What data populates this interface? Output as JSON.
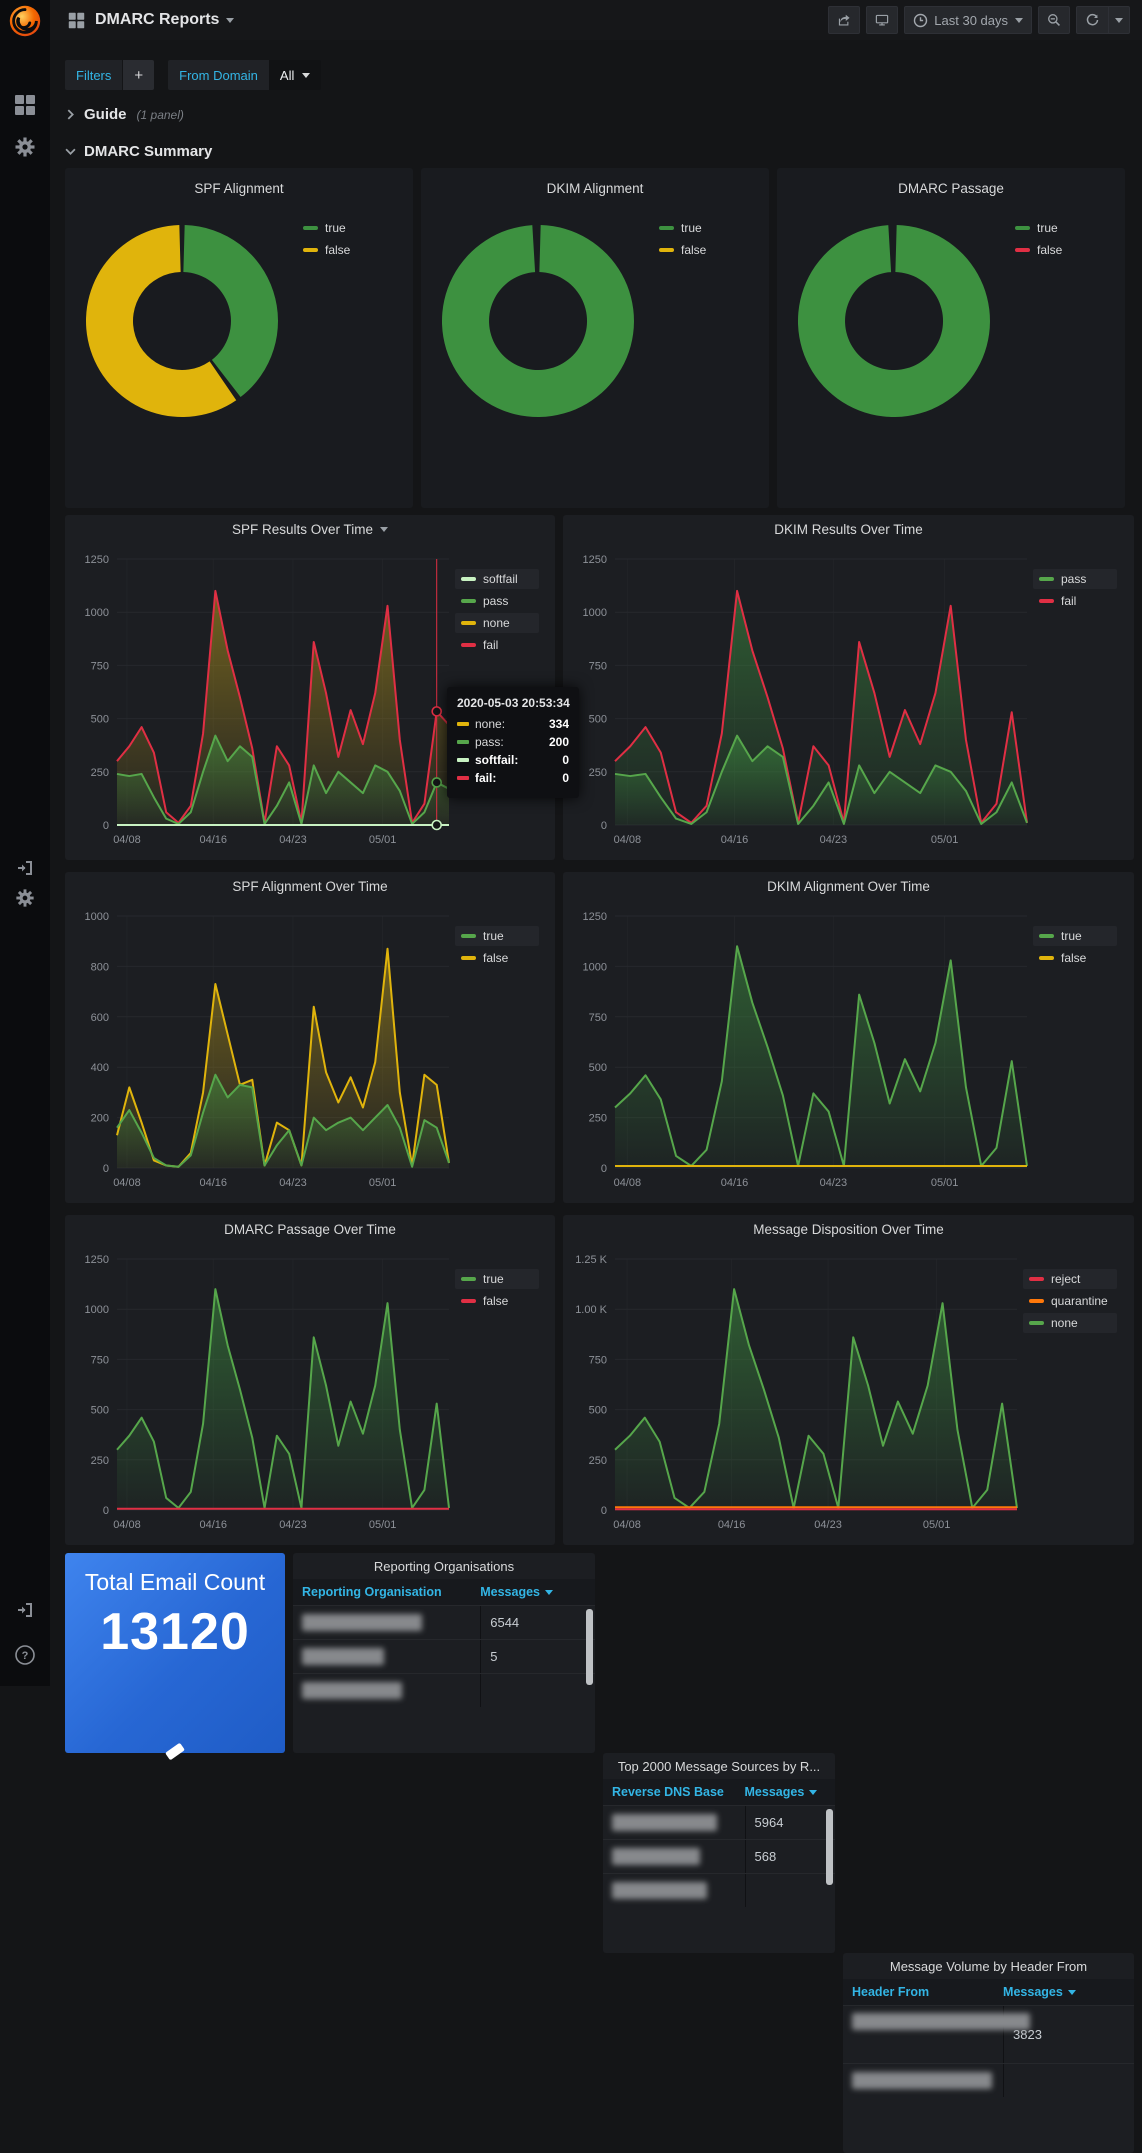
{
  "header": {
    "title": "DMARC Reports",
    "time_range": "Last 30 days"
  },
  "filters": {
    "label": "Filters",
    "add": "+",
    "from_domain_label": "From Domain",
    "from_domain_value": "All"
  },
  "guide": {
    "title": "Guide",
    "panel_count": "(1 panel)"
  },
  "summary": {
    "title": "DMARC Summary"
  },
  "colors": {
    "accent": "#33b5e5",
    "green": "#56a64b",
    "donut_green": "#3d9140",
    "yellow": "#e0b40c",
    "red": "#e02f44",
    "orange": "#ff780a",
    "lightgreen": "#c8f2c2",
    "panel_blue_from": "#3f84ee",
    "panel_blue_to": "#1f5cc6"
  },
  "spf_tooltip": {
    "time": "2020-05-03 20:53:34",
    "rows": [
      {
        "label": "none:",
        "value": "334",
        "color": "#e0b40c",
        "bold": false
      },
      {
        "label": "pass:",
        "value": "200",
        "color": "#56a64b",
        "bold": false
      },
      {
        "label": "softfail:",
        "value": "0",
        "color": "#c8f2c2",
        "bold": true
      },
      {
        "label": "fail:",
        "value": "0",
        "color": "#e02f44",
        "bold": true
      }
    ]
  },
  "chart_data": [
    {
      "id": "spf_alignment_donut",
      "type": "pie",
      "title": "SPF Alignment",
      "slices": [
        {
          "label": "true",
          "frac": 0.4,
          "color": "#3d9140"
        },
        {
          "label": "false",
          "frac": 0.6,
          "color": "#e0b40c"
        }
      ],
      "legend": [
        {
          "label": "true",
          "color": "#3d9140"
        },
        {
          "label": "false",
          "color": "#e0b40c"
        }
      ]
    },
    {
      "id": "dkim_alignment_donut",
      "type": "pie",
      "title": "DKIM Alignment",
      "slices": [
        {
          "label": "true",
          "frac": 0.995,
          "color": "#3d9140"
        },
        {
          "label": "false",
          "frac": 0.005,
          "color": "#e0b40c"
        }
      ],
      "legend": [
        {
          "label": "true",
          "color": "#3d9140"
        },
        {
          "label": "false",
          "color": "#e0b40c"
        }
      ]
    },
    {
      "id": "dmarc_passage_donut",
      "type": "pie",
      "title": "DMARC Passage",
      "slices": [
        {
          "label": "true",
          "frac": 0.995,
          "color": "#3d9140"
        },
        {
          "label": "false",
          "frac": 0.005,
          "color": "#e02f44"
        }
      ],
      "legend": [
        {
          "label": "true",
          "color": "#3d9140"
        },
        {
          "label": "false",
          "color": "#e02f44"
        }
      ]
    },
    {
      "id": "spf_results",
      "type": "area",
      "title": "SPF Results Over Time",
      "menu_caret": true,
      "ylim": [
        0,
        1250
      ],
      "yticks": [
        "1250",
        "1000",
        "750",
        "500",
        "250",
        "0"
      ],
      "xticks": [
        {
          "f": 0.03,
          "l": "04/08"
        },
        {
          "f": 0.29,
          "l": "04/16"
        },
        {
          "f": 0.53,
          "l": "04/23"
        },
        {
          "f": 0.8,
          "l": "05/01"
        }
      ],
      "legend": [
        {
          "label": "softfail",
          "color": "#c8f2c2"
        },
        {
          "label": "pass",
          "color": "#56a64b"
        },
        {
          "label": "none",
          "color": "#e0b40c"
        },
        {
          "label": "fail",
          "color": "#e02f44"
        }
      ],
      "series": [
        {
          "name": "fail",
          "color": "#e02f44",
          "fill": "#b99a1d",
          "values": [
            300,
            370,
            460,
            340,
            60,
            10,
            90,
            430,
            1100,
            820,
            600,
            360,
            10,
            370,
            280,
            10,
            860,
            620,
            320,
            540,
            380,
            620,
            1030,
            400,
            10,
            100,
            534,
            470
          ]
        },
        {
          "name": "pass",
          "color": "#56a64b",
          "fill": "#3f9141",
          "values": [
            240,
            230,
            240,
            130,
            30,
            5,
            60,
            250,
            420,
            300,
            370,
            320,
            5,
            90,
            200,
            5,
            280,
            150,
            250,
            200,
            150,
            280,
            250,
            160,
            5,
            60,
            200,
            170
          ]
        },
        {
          "name": "softfail",
          "color": "#c8f2c2",
          "flat": 0
        }
      ],
      "cursor": {
        "i": 26,
        "markers": [
          {
            "v": 534,
            "color": "#e02f44"
          },
          {
            "v": 200,
            "color": "#56a64b"
          },
          {
            "v": 0,
            "color": "#c8f2c2"
          }
        ]
      }
    },
    {
      "id": "dkim_results",
      "type": "area",
      "title": "DKIM Results Over Time",
      "ylim": [
        0,
        1250
      ],
      "yticks": [
        "1250",
        "1000",
        "750",
        "500",
        "250",
        "0"
      ],
      "xticks": [
        {
          "f": 0.03,
          "l": "04/08"
        },
        {
          "f": 0.29,
          "l": "04/16"
        },
        {
          "f": 0.53,
          "l": "04/23"
        },
        {
          "f": 0.8,
          "l": "05/01"
        }
      ],
      "legend": [
        {
          "label": "pass",
          "color": "#56a64b"
        },
        {
          "label": "fail",
          "color": "#e02f44"
        }
      ],
      "series": [
        {
          "name": "fail",
          "color": "#e02f44",
          "fill": "#3f9141",
          "values": [
            300,
            370,
            460,
            340,
            60,
            10,
            90,
            430,
            1100,
            820,
            600,
            360,
            10,
            370,
            280,
            10,
            860,
            620,
            320,
            540,
            380,
            620,
            1030,
            400,
            10,
            100,
            530,
            10
          ]
        },
        {
          "name": "pass",
          "color": "#56a64b",
          "fill": "#3f9141",
          "values": [
            240,
            230,
            240,
            130,
            30,
            5,
            60,
            250,
            420,
            300,
            370,
            320,
            5,
            90,
            200,
            5,
            280,
            150,
            250,
            200,
            150,
            280,
            250,
            160,
            5,
            60,
            200,
            10
          ]
        }
      ]
    },
    {
      "id": "spf_alignment_time",
      "type": "area",
      "title": "SPF Alignment Over Time",
      "ylim": [
        0,
        1000
      ],
      "yticks": [
        "1000",
        "800",
        "600",
        "400",
        "200",
        "0"
      ],
      "xticks": [
        {
          "f": 0.03,
          "l": "04/08"
        },
        {
          "f": 0.29,
          "l": "04/16"
        },
        {
          "f": 0.53,
          "l": "04/23"
        },
        {
          "f": 0.8,
          "l": "05/01"
        }
      ],
      "legend": [
        {
          "label": "true",
          "color": "#56a64b"
        },
        {
          "label": "false",
          "color": "#e0b40c"
        }
      ],
      "series": [
        {
          "name": "false",
          "color": "#e0b40c",
          "fill": "#b99a1d",
          "values": [
            130,
            320,
            180,
            30,
            10,
            5,
            60,
            300,
            730,
            530,
            330,
            350,
            10,
            180,
            150,
            10,
            640,
            380,
            260,
            360,
            240,
            420,
            870,
            300,
            10,
            370,
            330,
            20
          ]
        },
        {
          "name": "true",
          "color": "#56a64b",
          "fill": "#3f9141",
          "values": [
            160,
            230,
            140,
            40,
            10,
            5,
            50,
            220,
            370,
            280,
            330,
            320,
            10,
            90,
            150,
            10,
            200,
            150,
            180,
            200,
            150,
            200,
            250,
            160,
            5,
            190,
            160,
            20
          ]
        }
      ]
    },
    {
      "id": "dkim_alignment_time",
      "type": "area",
      "title": "DKIM Alignment Over Time",
      "ylim": [
        0,
        1250
      ],
      "yticks": [
        "1250",
        "1000",
        "750",
        "500",
        "250",
        "0"
      ],
      "xticks": [
        {
          "f": 0.03,
          "l": "04/08"
        },
        {
          "f": 0.29,
          "l": "04/16"
        },
        {
          "f": 0.53,
          "l": "04/23"
        },
        {
          "f": 0.8,
          "l": "05/01"
        }
      ],
      "legend": [
        {
          "label": "true",
          "color": "#56a64b"
        },
        {
          "label": "false",
          "color": "#e0b40c"
        }
      ],
      "series": [
        {
          "name": "true",
          "color": "#56a64b",
          "fill": "#3f9141",
          "values": [
            300,
            370,
            460,
            340,
            60,
            10,
            90,
            430,
            1100,
            820,
            600,
            360,
            10,
            370,
            280,
            10,
            860,
            620,
            320,
            540,
            380,
            620,
            1030,
            400,
            10,
            100,
            530,
            10
          ]
        },
        {
          "name": "false",
          "color": "#e0b40c",
          "flat": 10
        }
      ]
    },
    {
      "id": "dmarc_passage_time",
      "type": "area",
      "title": "DMARC Passage Over Time",
      "ylim": [
        0,
        1250
      ],
      "yticks": [
        "1250",
        "1000",
        "750",
        "500",
        "250",
        "0"
      ],
      "xticks": [
        {
          "f": 0.03,
          "l": "04/08"
        },
        {
          "f": 0.29,
          "l": "04/16"
        },
        {
          "f": 0.53,
          "l": "04/23"
        },
        {
          "f": 0.8,
          "l": "05/01"
        }
      ],
      "legend": [
        {
          "label": "true",
          "color": "#56a64b"
        },
        {
          "label": "false",
          "color": "#e02f44"
        }
      ],
      "series": [
        {
          "name": "true",
          "color": "#56a64b",
          "fill": "#3f9141",
          "values": [
            300,
            370,
            460,
            340,
            60,
            10,
            90,
            430,
            1100,
            820,
            600,
            360,
            10,
            370,
            280,
            10,
            860,
            620,
            320,
            540,
            380,
            620,
            1030,
            400,
            10,
            100,
            530,
            10
          ]
        },
        {
          "name": "false",
          "color": "#e02f44",
          "flat": 6
        }
      ]
    },
    {
      "id": "message_disposition",
      "type": "area",
      "title": "Message Disposition Over Time",
      "ylim": [
        0,
        1250
      ],
      "yticks": [
        "1.25 K",
        "1.00 K",
        "750",
        "500",
        "250",
        "0"
      ],
      "xticks": [
        {
          "f": 0.03,
          "l": "04/08"
        },
        {
          "f": 0.29,
          "l": "04/16"
        },
        {
          "f": 0.53,
          "l": "04/23"
        },
        {
          "f": 0.8,
          "l": "05/01"
        }
      ],
      "legend": [
        {
          "label": "reject",
          "color": "#e02f44"
        },
        {
          "label": "quarantine",
          "color": "#ff780a"
        },
        {
          "label": "none",
          "color": "#56a64b"
        }
      ],
      "series": [
        {
          "name": "none",
          "color": "#56a64b",
          "fill": "#3f9141",
          "values": [
            300,
            370,
            460,
            340,
            60,
            10,
            90,
            430,
            1100,
            820,
            600,
            360,
            10,
            370,
            280,
            10,
            860,
            620,
            320,
            540,
            380,
            620,
            1030,
            400,
            10,
            100,
            530,
            10
          ]
        },
        {
          "name": "quarantine",
          "color": "#ff780a",
          "flat": 14
        },
        {
          "name": "reject",
          "color": "#e02f44",
          "flat": 4
        }
      ]
    }
  ],
  "tables": [
    {
      "title": "Reporting Organisations",
      "col1": "Reporting Organisation",
      "col2": "Messages",
      "split": 62,
      "scrollbar": true,
      "rows": [
        {
          "blur": 120,
          "value": "6544"
        },
        {
          "blur": 82,
          "value": "5"
        },
        {
          "blur": 100,
          "value": ""
        }
      ]
    },
    {
      "title": "Top 2000 Message Sources by R...",
      "col1": "Reverse DNS Base",
      "col2": "Messages",
      "split": 61,
      "scrollbar": true,
      "rows": [
        {
          "blur": 105,
          "value": "5964"
        },
        {
          "blur": 88,
          "value": "568"
        },
        {
          "blur": 95,
          "value": ""
        }
      ]
    },
    {
      "title": "Message Volume by Header From",
      "col1": "Header From",
      "col2": "Messages",
      "split": 55,
      "scrollbar": false,
      "rows": [
        {
          "blur": 178,
          "value": "3823",
          "tall": true
        },
        {
          "blur": 140,
          "value": ""
        }
      ]
    }
  ],
  "total_panel": {
    "title": "Total Email Count",
    "value": "13120"
  }
}
